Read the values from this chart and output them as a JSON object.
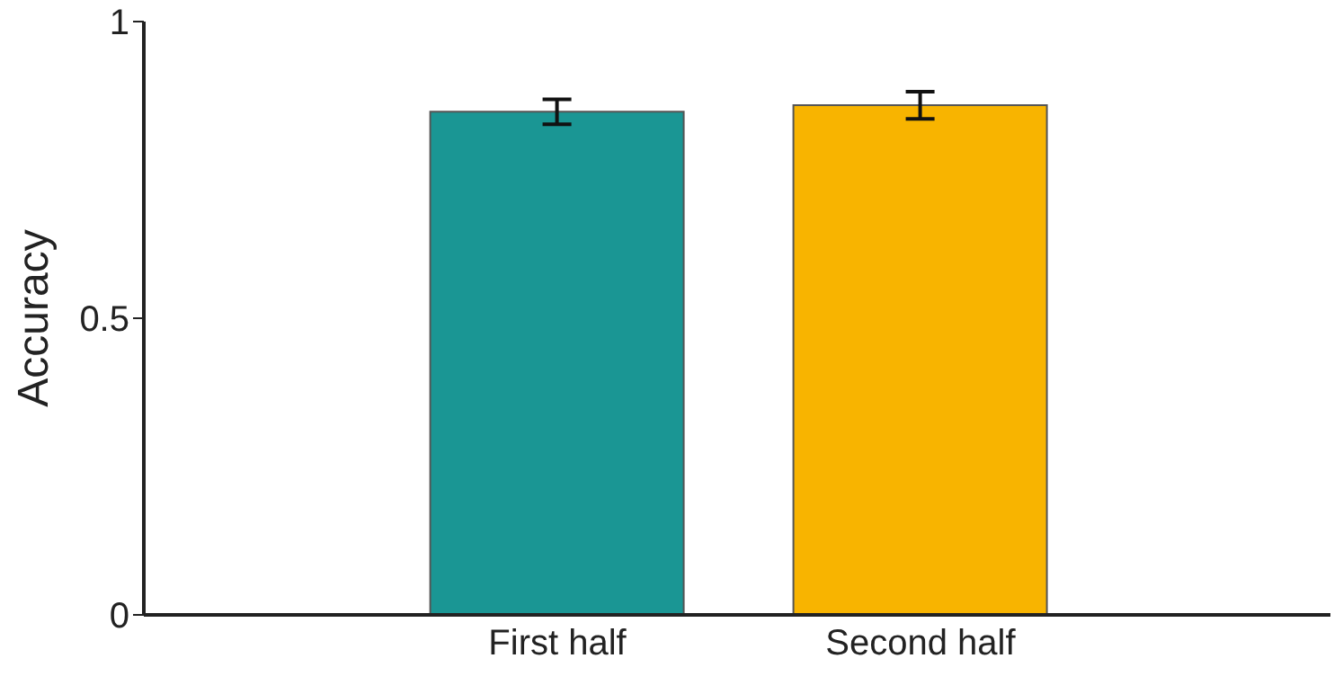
{
  "chart_data": {
    "type": "bar",
    "ylabel": "Accuracy",
    "categories": [
      "First half",
      "Second half"
    ],
    "values": [
      0.848,
      0.859
    ],
    "errors": [
      0.021,
      0.023
    ],
    "colors": [
      "#1a9694",
      "#f8b400"
    ],
    "ylim": [
      0,
      1
    ],
    "yticks": [
      0,
      0.5,
      1
    ],
    "grid": false,
    "legend": false
  }
}
